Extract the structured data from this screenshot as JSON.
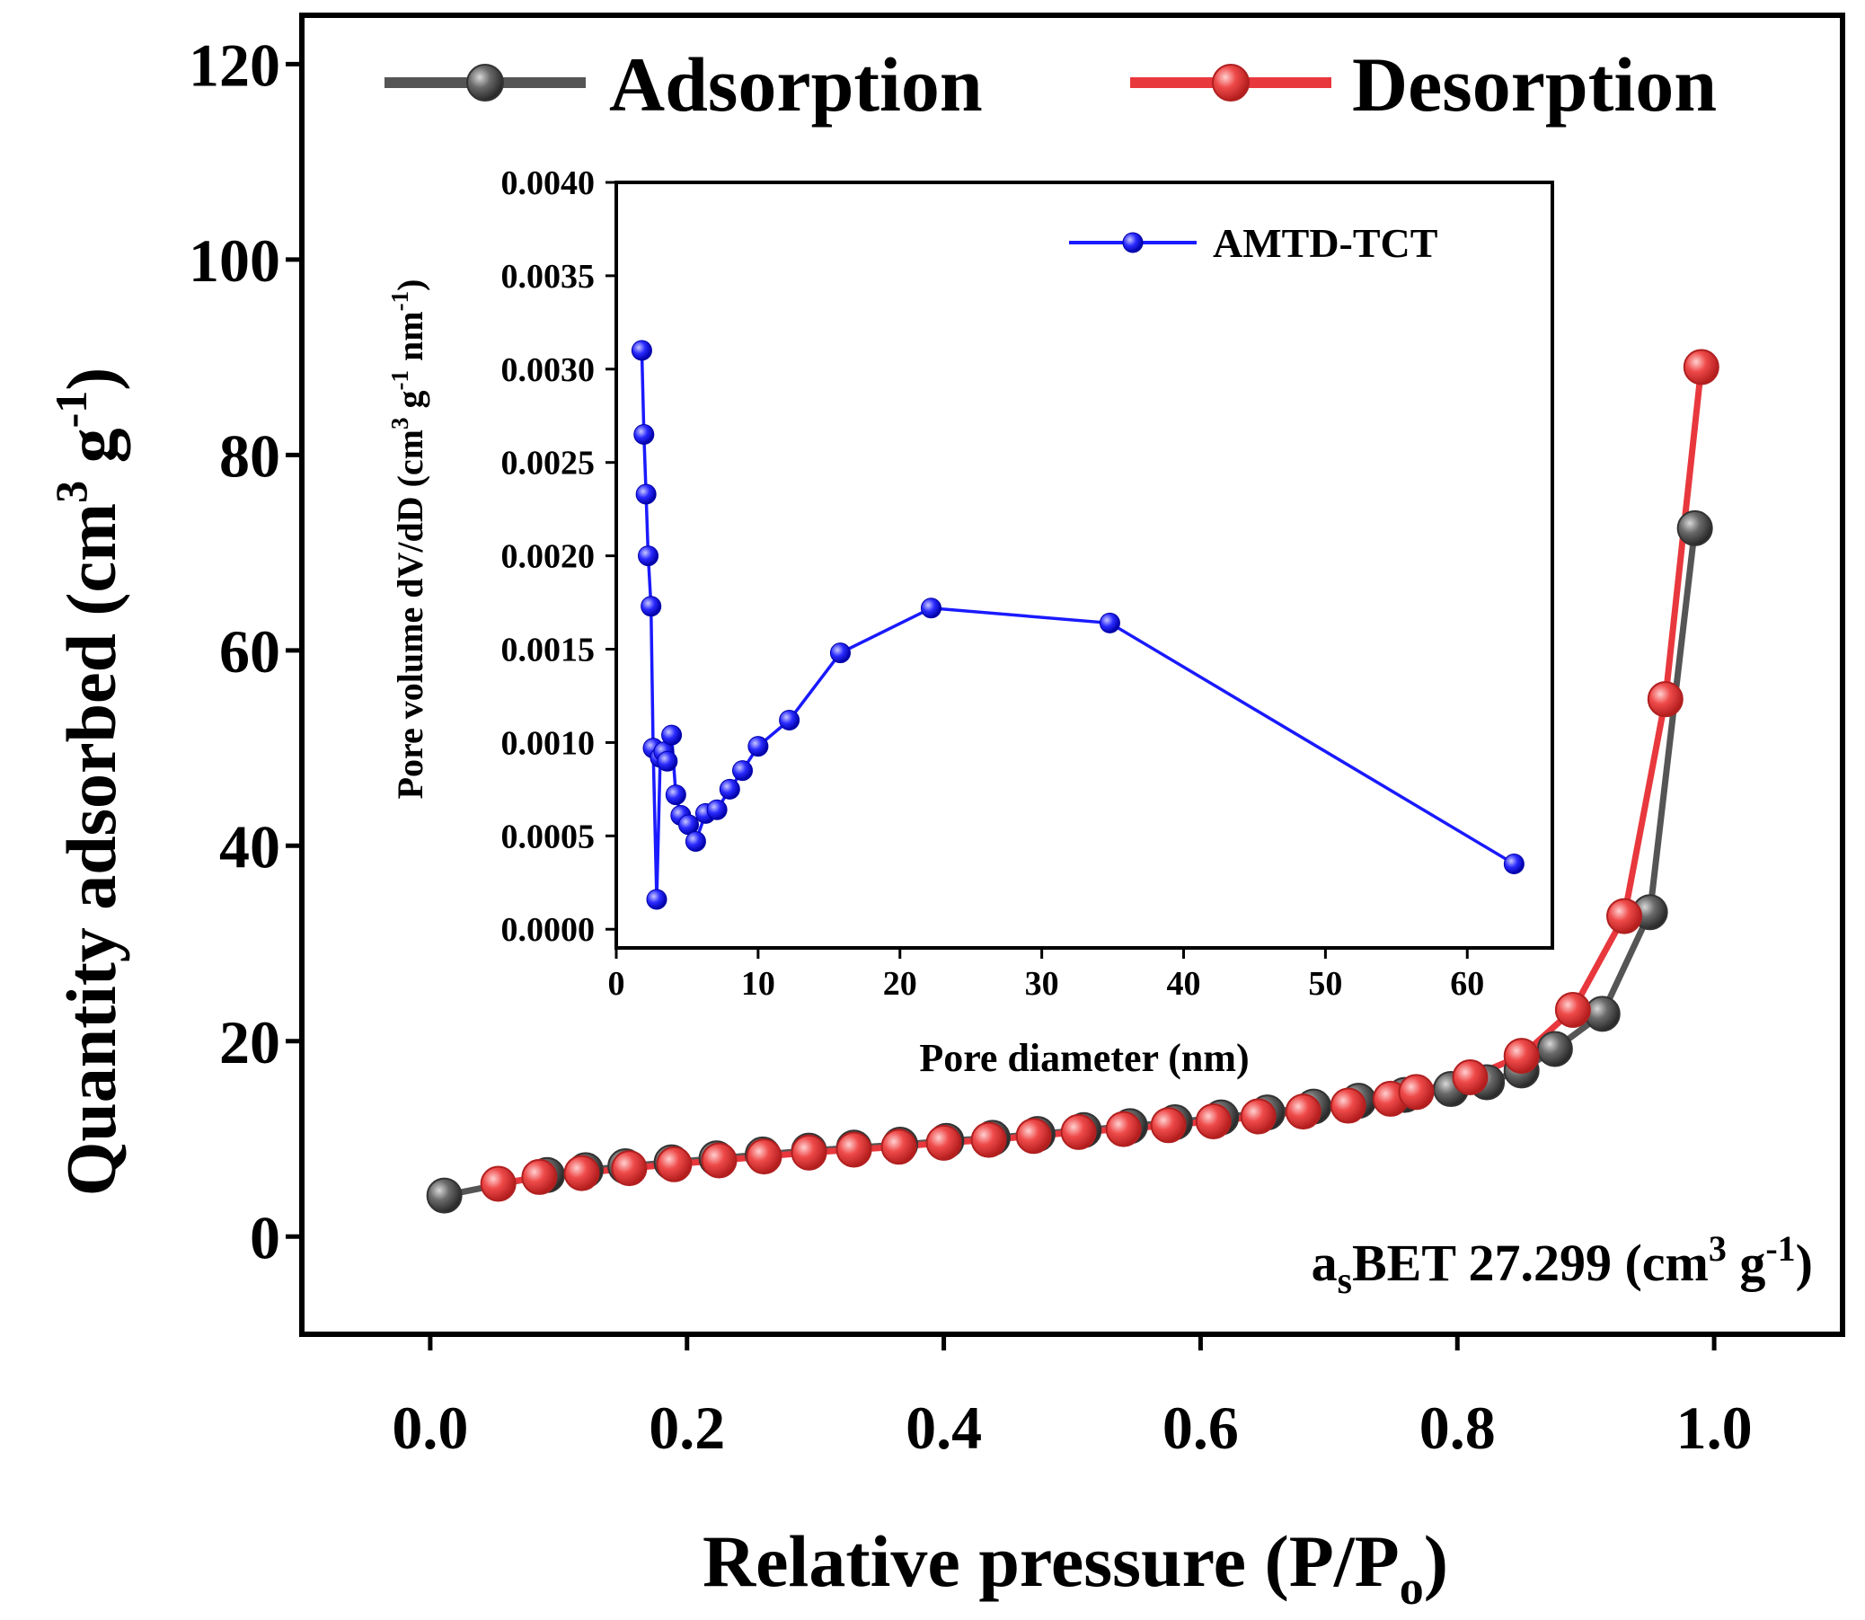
{
  "chart_data": [
    {
      "type": "scatter",
      "xlabel": "Relative pressure (P/P",
      "xlabel_sub": "o",
      "xlabel_close": ")",
      "ylabel_part1": "Quantity adsorbed (cm",
      "ylabel_sup1": "3",
      "ylabel_part2": " g",
      "ylabel_sup2": "-1",
      "ylabel_close": ")",
      "xlim": [
        -0.1,
        1.1
      ],
      "ylim": [
        -10,
        125
      ],
      "xticks": [
        0.0,
        0.2,
        0.4,
        0.6,
        0.8,
        1.0
      ],
      "xtick_labels": [
        "0.0",
        "0.2",
        "0.4",
        "0.6",
        "0.8",
        "1.0"
      ],
      "yticks": [
        0,
        20,
        40,
        60,
        80,
        100,
        120
      ],
      "ytick_labels": [
        "0",
        "20",
        "40",
        "60",
        "80",
        "100",
        "120"
      ],
      "legend_position": "top",
      "annotation": {
        "prefix": "a",
        "sub": "s",
        "main": "BET 27.299 (cm",
        "sup1": "3",
        "mid": " g",
        "sup2": "-1",
        "close": ")"
      },
      "series": [
        {
          "name": "Adsorption",
          "color": "#555555",
          "x": [
            0.011,
            0.091,
            0.121,
            0.152,
            0.188,
            0.223,
            0.259,
            0.295,
            0.33,
            0.366,
            0.402,
            0.438,
            0.473,
            0.509,
            0.545,
            0.58,
            0.616,
            0.652,
            0.688,
            0.723,
            0.759,
            0.795,
            0.823,
            0.85,
            0.876,
            0.913,
            0.95,
            0.985
          ],
          "y": [
            4.2,
            6.3,
            6.8,
            7.2,
            7.6,
            8.0,
            8.4,
            8.8,
            9.1,
            9.4,
            9.8,
            10.1,
            10.5,
            10.9,
            11.3,
            11.7,
            12.2,
            12.7,
            13.3,
            13.9,
            14.5,
            15.1,
            15.8,
            17.0,
            19.2,
            22.8,
            33.2,
            72.5
          ]
        },
        {
          "name": "Desorption",
          "color": "#e8383d",
          "x": [
            0.053,
            0.085,
            0.118,
            0.155,
            0.19,
            0.225,
            0.26,
            0.295,
            0.33,
            0.365,
            0.4,
            0.435,
            0.47,
            0.505,
            0.54,
            0.575,
            0.61,
            0.645,
            0.68,
            0.715,
            0.748,
            0.768,
            0.81,
            0.85,
            0.89,
            0.93,
            0.962,
            0.99
          ],
          "y": [
            5.4,
            6.1,
            6.5,
            7.0,
            7.4,
            7.8,
            8.2,
            8.6,
            8.9,
            9.2,
            9.6,
            9.9,
            10.3,
            10.7,
            11.0,
            11.4,
            11.8,
            12.3,
            12.8,
            13.4,
            14.1,
            14.8,
            16.3,
            18.5,
            23.2,
            32.8,
            55.0,
            89.0
          ]
        }
      ]
    },
    {
      "type": "line",
      "xlabel": "Pore diameter (nm)",
      "ylabel_part1": "Pore volume dV/dD (cm",
      "ylabel_sup1": "3",
      "ylabel_part2": " g",
      "ylabel_sup2": "-1",
      "ylabel_part3": " nm",
      "ylabel_sup3": "-1",
      "ylabel_close": ")",
      "xlim": [
        0,
        66
      ],
      "ylim": [
        -0.0001,
        0.004
      ],
      "xticks": [
        0,
        10,
        20,
        30,
        40,
        50,
        60
      ],
      "xtick_labels": [
        "0",
        "10",
        "20",
        "30",
        "40",
        "50",
        "60"
      ],
      "yticks": [
        0.0,
        0.0005,
        0.001,
        0.0015,
        0.002,
        0.0025,
        0.003,
        0.0035,
        0.004
      ],
      "ytick_labels": [
        "0.0000",
        "0.0005",
        "0.0010",
        "0.0015",
        "0.0020",
        "0.0025",
        "0.0030",
        "0.0035",
        "0.0040"
      ],
      "legend_position": "top-right",
      "series": [
        {
          "name": "AMTD-TCT",
          "color": "#1a1aff",
          "x": [
            1.8,
            1.95,
            2.1,
            2.25,
            2.45,
            2.6,
            2.85,
            3.1,
            3.35,
            3.6,
            3.9,
            4.2,
            4.55,
            5.1,
            5.6,
            6.3,
            7.1,
            8.0,
            8.9,
            10.0,
            12.2,
            15.8,
            22.2,
            34.8,
            63.3
          ],
          "y": [
            0.0031,
            0.00265,
            0.00233,
            0.002,
            0.00173,
            0.00097,
            0.00016,
            0.00092,
            0.00095,
            0.0009,
            0.00104,
            0.00072,
            0.00061,
            0.00056,
            0.00047,
            0.00062,
            0.00064,
            0.00075,
            0.00085,
            0.00098,
            0.00112,
            0.00148,
            0.00172,
            0.00164,
            0.00035
          ]
        }
      ]
    }
  ]
}
